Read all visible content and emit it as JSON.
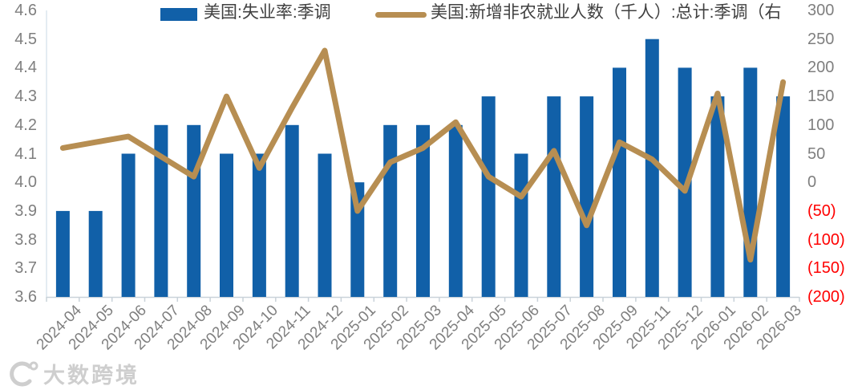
{
  "legend": {
    "items": [
      {
        "label": "美国:失业率:季调",
        "type": "bar",
        "color": "#1160A8"
      },
      {
        "label": "美国:新增非农就业人数（千人）:总计:季调（右",
        "type": "line",
        "color": "#B78E52"
      }
    ]
  },
  "chart_data": {
    "type": "bar",
    "subtype": "bar-line-combo",
    "categories": [
      "2024-04",
      "2024-05",
      "2024-06",
      "2024-07",
      "2024-08",
      "2024-09",
      "2024-10",
      "2024-11",
      "2024-12",
      "2025-01",
      "2025-02",
      "2025-03",
      "2025-04",
      "2025-05",
      "2025-06",
      "2025-07",
      "2025-08",
      "2025-09",
      "2025-11",
      "2025-12",
      "2026-01",
      "2026-02",
      "2026-03"
    ],
    "series": [
      {
        "name": "美国:失业率:季调",
        "type": "bar",
        "axis": "left",
        "color": "#1160A8",
        "values": [
          3.9,
          3.9,
          4.1,
          4.2,
          4.2,
          4.1,
          4.1,
          4.2,
          4.1,
          4.0,
          4.2,
          4.2,
          4.2,
          4.3,
          4.1,
          4.3,
          4.3,
          4.4,
          4.5,
          4.4,
          4.3,
          4.4,
          4.3
        ]
      },
      {
        "name": "美国:新增非农就业人数（千人）:总计:季调（右",
        "type": "line",
        "axis": "right",
        "color": "#B78E52",
        "values": [
          60,
          70,
          80,
          45,
          10,
          150,
          25,
          130,
          230,
          -50,
          35,
          60,
          105,
          10,
          -25,
          55,
          -75,
          70,
          40,
          -15,
          155,
          -135,
          175
        ]
      }
    ],
    "left_axis": {
      "min": 3.6,
      "max": 4.6,
      "ticks": [
        "4.6",
        "4.5",
        "4.4",
        "4.3",
        "4.2",
        "4.1",
        "4.0",
        "3.9",
        "3.8",
        "3.7",
        "3.6"
      ]
    },
    "right_axis": {
      "min": -200,
      "max": 300,
      "ticks": [
        "300",
        "250",
        "200",
        "150",
        "100",
        "50",
        "0",
        "(50)",
        "(100)",
        "(150)",
        "(200)"
      ],
      "negative_style": "red-parentheses"
    },
    "grid": false,
    "legend_position": "top",
    "title": "",
    "xlabel": "",
    "ylabel": ""
  },
  "colors": {
    "bar": "#1160A8",
    "line": "#B78E52",
    "tick_label": "#7F7F7F",
    "negative_tick_label": "#FF0000",
    "legend_text": "#404040",
    "axis_line": "#C9D2D9"
  },
  "watermark": {
    "text": "大数跨境"
  }
}
